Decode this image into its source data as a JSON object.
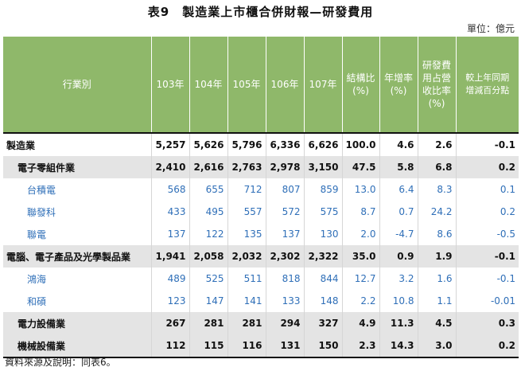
{
  "title": "表9　製造業上市櫃合併財報—研發費用",
  "unit": "單位：億元",
  "headers": [
    "行業別",
    "103年",
    "104年",
    "105年",
    "106年",
    "107年",
    "結構比\n(%)",
    "年增率\n(%)",
    "研發費\n用占營\n收比率\n(%)",
    "較上年同期\n增減百分點"
  ],
  "rows": [
    {
      "name": "製造業",
      "values": [
        "5,257",
        "5,626",
        "5,796",
        "6,336",
        "6,626",
        "100.0",
        "4.6",
        "2.6",
        "-0.1"
      ]
    },
    {
      "name": "電子零組件業",
      "values": [
        "2,410",
        "2,616",
        "2,763",
        "2,978",
        "3,150",
        "47.5",
        "5.8",
        "6.8",
        "0.2"
      ]
    },
    {
      "name": "台積電",
      "values": [
        "568",
        "655",
        "712",
        "807",
        "859",
        "13.0",
        "6.4",
        "8.3",
        "0.1"
      ]
    },
    {
      "name": "聯發科",
      "values": [
        "433",
        "495",
        "557",
        "572",
        "575",
        "8.7",
        "0.7",
        "24.2",
        "0.2"
      ]
    },
    {
      "name": "聯電",
      "values": [
        "137",
        "122",
        "135",
        "137",
        "130",
        "2.0",
        "-4.7",
        "8.6",
        "-0.5"
      ]
    },
    {
      "name": "電腦、電子產品及光學製品業",
      "values": [
        "1,941",
        "2,058",
        "2,032",
        "2,302",
        "2,322",
        "35.0",
        "0.9",
        "1.9",
        "-0.1"
      ]
    },
    {
      "name": "鴻海",
      "values": [
        "489",
        "525",
        "511",
        "818",
        "844",
        "12.7",
        "3.2",
        "1.6",
        "-0.1"
      ]
    },
    {
      "name": "和碩",
      "values": [
        "123",
        "147",
        "141",
        "133",
        "148",
        "2.2",
        "10.8",
        "1.1",
        "-0.01"
      ]
    },
    {
      "name": "電力設備業",
      "values": [
        "267",
        "281",
        "281",
        "294",
        "327",
        "4.9",
        "11.3",
        "4.5",
        "0.3"
      ]
    },
    {
      "name": "機械設備業",
      "values": [
        "112",
        "115",
        "116",
        "131",
        "150",
        "2.3",
        "14.3",
        "3.0",
        "0.2"
      ]
    }
  ],
  "source": "資料來源及說明：同表6。"
}
